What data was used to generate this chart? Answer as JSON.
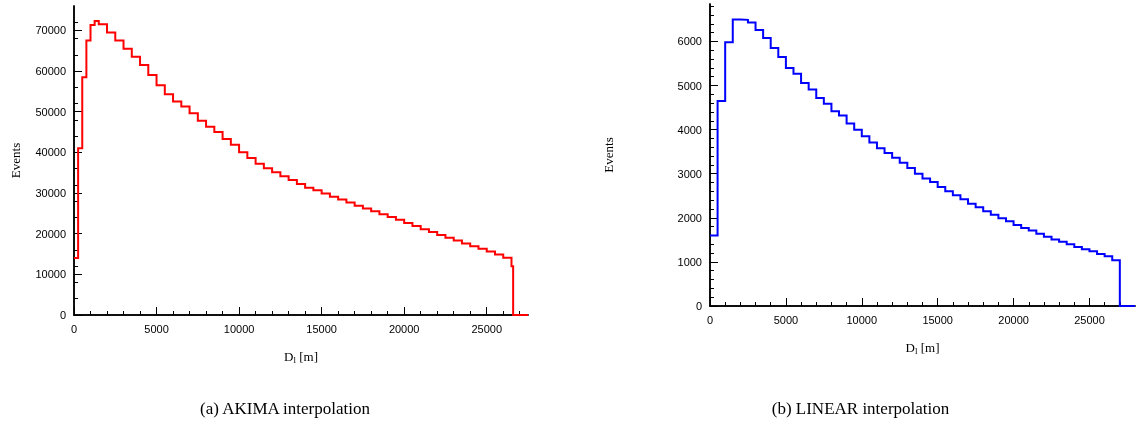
{
  "chart_data": [
    {
      "type": "histogram",
      "title": "(a) AKIMA interpolation",
      "xlabel": "D$_{l}$ [m]",
      "ylabel": "Events",
      "bins": [
        0,
        250,
        500,
        750,
        1000,
        1250,
        1500,
        2000,
        2500,
        3000,
        3500,
        4000,
        4500,
        5000,
        5500,
        6000,
        6500,
        7000,
        7500,
        8000,
        8500,
        9000,
        9500,
        10000,
        10500,
        11000,
        11500,
        12000,
        12500,
        13000,
        13500,
        14000,
        14500,
        15000,
        15500,
        16000,
        16500,
        17000,
        17500,
        18000,
        18500,
        19000,
        19500,
        20000,
        20500,
        21000,
        21500,
        22000,
        22500,
        23000,
        23500,
        24000,
        24500,
        25000,
        25500,
        26000,
        26500,
        26600,
        27500
      ],
      "values": [
        14000,
        41000,
        58500,
        67500,
        71300,
        72300,
        71500,
        69500,
        67500,
        65500,
        63500,
        61500,
        59000,
        56500,
        54300,
        52500,
        51300,
        49600,
        47800,
        46300,
        45000,
        43300,
        41900,
        40000,
        38600,
        37200,
        36100,
        35100,
        34100,
        33200,
        32200,
        31300,
        30700,
        29900,
        29100,
        28400,
        27700,
        26900,
        26200,
        25500,
        24800,
        24100,
        23400,
        22600,
        21900,
        21100,
        20400,
        19700,
        19000,
        18300,
        17600,
        16900,
        16300,
        15600,
        14900,
        14100,
        12000,
        0
      ],
      "color": "#ff0000",
      "xlim": [
        0,
        27500
      ],
      "ylim": [
        0,
        76000
      ],
      "xticks": [
        0,
        5000,
        10000,
        15000,
        20000,
        25000
      ],
      "yticks": [
        0,
        10000,
        20000,
        30000,
        40000,
        50000,
        60000,
        70000
      ],
      "grid": false
    },
    {
      "type": "histogram",
      "title": "(b) LINEAR interpolation",
      "xlabel": "D$_{l}$ [m]",
      "ylabel": "Events",
      "bins": [
        0,
        500,
        1000,
        1500,
        2000,
        2500,
        3000,
        3500,
        4000,
        4500,
        5000,
        5500,
        6000,
        6500,
        7000,
        7500,
        8000,
        8500,
        9000,
        9500,
        10000,
        10500,
        11000,
        11500,
        12000,
        12500,
        13000,
        13500,
        14000,
        14500,
        15000,
        15500,
        16000,
        16500,
        17000,
        17500,
        18000,
        18500,
        19000,
        19500,
        20000,
        20500,
        21000,
        21500,
        22000,
        22500,
        23000,
        23500,
        24000,
        24500,
        25000,
        25500,
        26000,
        26500,
        27000,
        28000
      ],
      "values": [
        1600,
        4650,
        5980,
        6500,
        6490,
        6430,
        6260,
        6080,
        5850,
        5650,
        5400,
        5270,
        5060,
        4910,
        4720,
        4590,
        4420,
        4320,
        4140,
        4000,
        3850,
        3710,
        3580,
        3470,
        3360,
        3250,
        3130,
        3000,
        2890,
        2810,
        2700,
        2600,
        2510,
        2420,
        2320,
        2240,
        2150,
        2070,
        1990,
        1920,
        1840,
        1770,
        1710,
        1640,
        1570,
        1510,
        1460,
        1400,
        1340,
        1290,
        1240,
        1180,
        1130,
        1040,
        0
      ],
      "color": "#0000ff",
      "xlim": [
        0,
        28000
      ],
      "ylim": [
        0,
        6850
      ],
      "xticks": [
        0,
        5000,
        10000,
        15000,
        20000,
        25000
      ],
      "yticks": [
        0,
        1000,
        2000,
        3000,
        4000,
        5000,
        6000
      ],
      "grid": false
    }
  ]
}
